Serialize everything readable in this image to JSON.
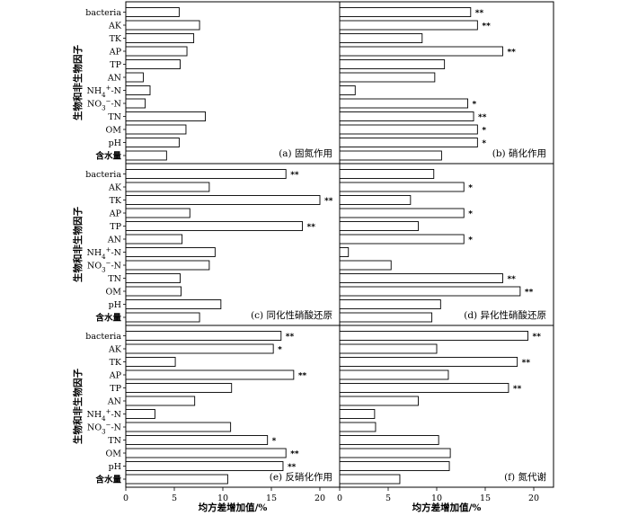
{
  "chart_data": {
    "type": "bar",
    "orientation": "horizontal",
    "xlabel": "均方差增加值/%",
    "ylabel": "生物和非生物因子",
    "xlim": [
      0,
      22
    ],
    "xticks": [
      "0",
      "5",
      "10",
      "15",
      "20"
    ],
    "grid": false,
    "categories": [
      "bacteria",
      "AK",
      "TK",
      "AP",
      "TP",
      "AN",
      "NH4+-N",
      "NO3−-N",
      "TN",
      "OM",
      "pH",
      "含水量"
    ],
    "panels": [
      {
        "label": "(a) 固氮作用",
        "values": [
          5.5,
          7.6,
          7.0,
          6.3,
          5.6,
          1.8,
          2.5,
          2.0,
          8.2,
          6.2,
          5.5,
          4.2
        ],
        "significance": [
          "",
          "",
          "",
          "",
          "",
          "",
          "",
          "",
          "",
          "",
          "",
          ""
        ]
      },
      {
        "label": "(b) 硝化作用",
        "values": [
          13.5,
          14.2,
          8.5,
          16.8,
          10.8,
          9.8,
          1.6,
          13.2,
          13.8,
          14.2,
          14.2,
          10.5
        ],
        "significance": [
          "**",
          "**",
          "",
          "**",
          "",
          "",
          "",
          "*",
          "**",
          "*",
          "*",
          ""
        ]
      },
      {
        "label": "(c) 同化性硝酸还原",
        "values": [
          16.5,
          8.6,
          20.0,
          6.6,
          18.2,
          5.8,
          9.2,
          8.6,
          5.6,
          5.7,
          9.8,
          7.6
        ],
        "significance": [
          "**",
          "",
          "**",
          "",
          "**",
          "",
          "",
          "",
          "",
          "",
          "",
          ""
        ]
      },
      {
        "label": "(d) 异化性硝酸还原",
        "values": [
          9.7,
          12.8,
          7.3,
          12.8,
          8.1,
          12.8,
          0.9,
          5.3,
          16.8,
          18.6,
          10.4,
          9.5
        ],
        "significance": [
          "",
          "*",
          "",
          "*",
          "",
          "*",
          "",
          "",
          "**",
          "**",
          "",
          ""
        ]
      },
      {
        "label": "(e) 反硝化作用",
        "values": [
          16.0,
          15.2,
          5.1,
          17.3,
          10.9,
          7.1,
          3.0,
          10.8,
          14.6,
          16.5,
          16.2,
          10.5
        ],
        "significance": [
          "**",
          "*",
          "",
          "**",
          "",
          "",
          "",
          "",
          "*",
          "**",
          "**",
          ""
        ]
      },
      {
        "label": "(f) 氮代谢",
        "values": [
          19.4,
          10.0,
          18.3,
          11.2,
          17.4,
          8.1,
          3.6,
          3.7,
          10.2,
          11.4,
          11.3,
          6.2
        ],
        "significance": [
          "**",
          "",
          "**",
          "",
          "**",
          "",
          "",
          "",
          "",
          "",
          "",
          ""
        ]
      }
    ]
  }
}
